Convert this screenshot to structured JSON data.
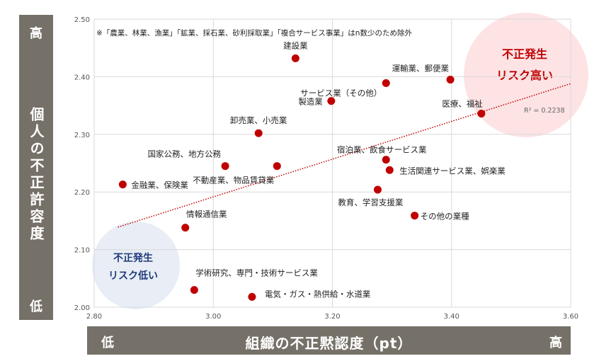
{
  "chart_data": {
    "type": "scatter",
    "xlabel": "組織の不正黙認度（pt）",
    "ylabel": "個人の不正許容度（pt）",
    "x_low": "低",
    "x_high": "高",
    "y_low": "低",
    "y_high": "高",
    "xlim": [
      2.8,
      3.6
    ],
    "ylim": [
      2.0,
      2.5
    ],
    "xticks": [
      "2.80",
      "3.00",
      "3.20",
      "3.40",
      "3.60"
    ],
    "yticks": [
      "2.00",
      "2.10",
      "2.20",
      "2.30",
      "2.40",
      "2.50"
    ],
    "grid": true,
    "note": "※「農業、林業、漁業」「鉱業、採石業、砂利採取業」「複合サービス事業」はn数少のため除外",
    "trendline": {
      "x1": 2.84,
      "y1": 2.139,
      "x2": 3.6,
      "y2": 2.388,
      "style": "dotted",
      "r2_label": "R² = 0.2238"
    },
    "zones": {
      "high": {
        "line1": "不正発生",
        "line2": "リスク高い",
        "color": "#fde3e4"
      },
      "low": {
        "line1": "不正発生",
        "line2": "リスク低い",
        "color": "#e8edf6"
      }
    },
    "point_color": "#c00000",
    "points": [
      {
        "label": "建設業",
        "x": 3.138,
        "y": 2.432
      },
      {
        "label": "運輸業、郵便業",
        "x": 3.398,
        "y": 2.395
      },
      {
        "label": "サービス業（その他）",
        "x": 3.29,
        "y": 2.389
      },
      {
        "label": "製造業",
        "x": 3.198,
        "y": 2.358
      },
      {
        "label": "医療、福祉",
        "x": 3.45,
        "y": 2.336
      },
      {
        "label": "卸売業、小売業",
        "x": 3.076,
        "y": 2.302
      },
      {
        "label": "宿泊業、飲食サービス業",
        "x": 3.29,
        "y": 2.256
      },
      {
        "label": "国家公務、地方公務",
        "x": 3.02,
        "y": 2.245
      },
      {
        "label": "不動産業、物品賃貸業",
        "x": 3.107,
        "y": 2.245
      },
      {
        "label": "生活関連サービス業、娯楽業",
        "x": 3.296,
        "y": 2.238
      },
      {
        "label": "金融業、保険業",
        "x": 2.848,
        "y": 2.213
      },
      {
        "label": "教育、学習支援業",
        "x": 3.276,
        "y": 2.204
      },
      {
        "label": "その他の業種",
        "x": 3.338,
        "y": 2.159
      },
      {
        "label": "情報通信業",
        "x": 2.953,
        "y": 2.138
      },
      {
        "label": "学術研究、専門・技術サービス業",
        "x": 2.968,
        "y": 2.03
      },
      {
        "label": "電気・ガス・熱供給・水道業",
        "x": 3.065,
        "y": 2.018
      }
    ]
  }
}
